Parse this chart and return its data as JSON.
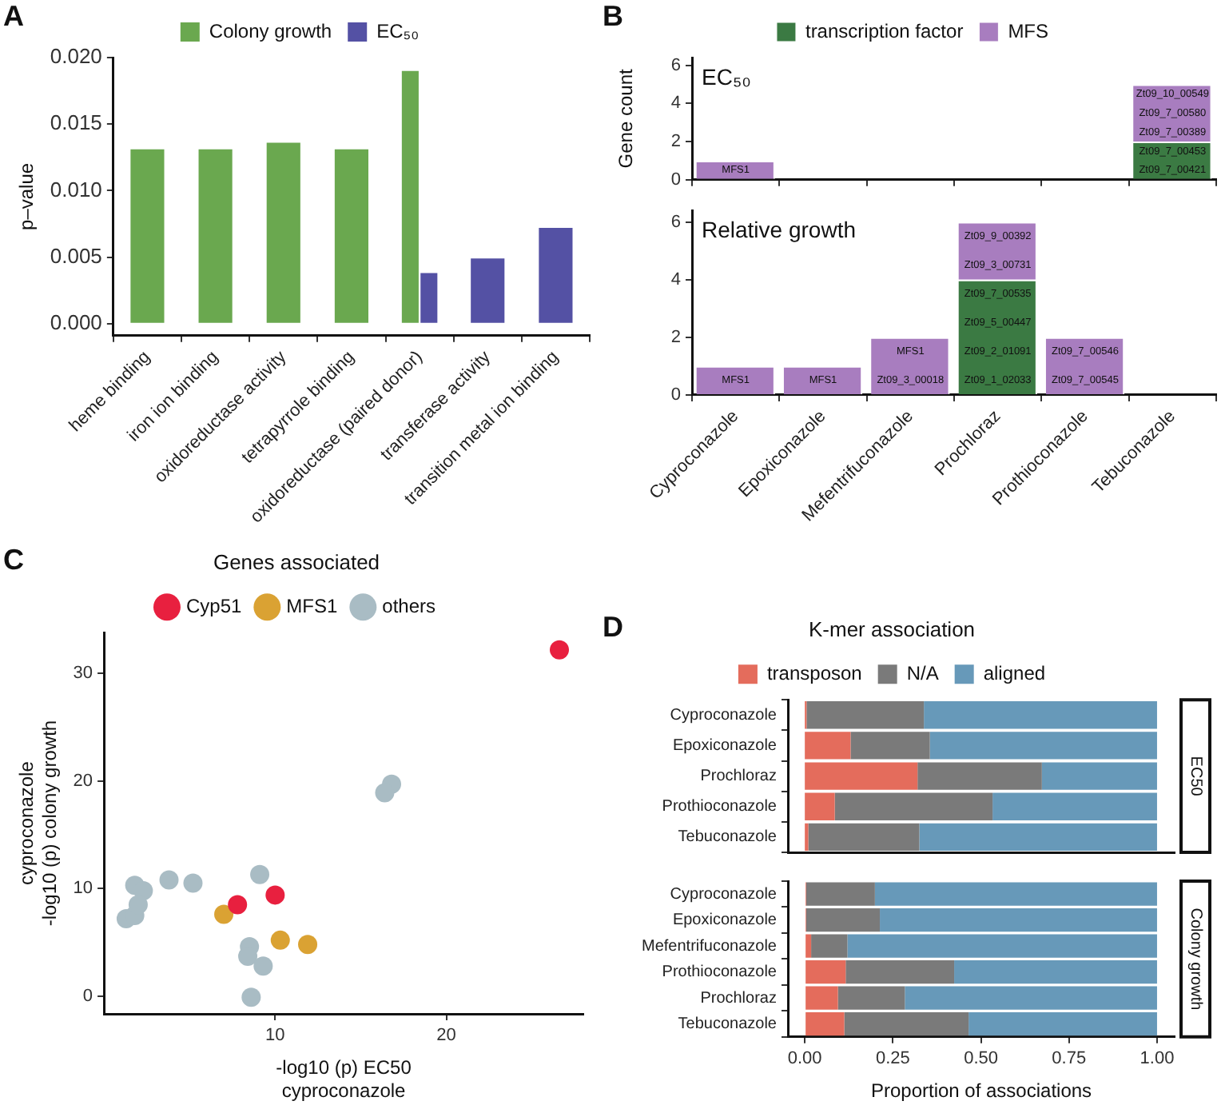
{
  "chart_data": [
    {
      "type": "bar",
      "ylabel": "p–value",
      "legend": "top",
      "annotations": [
        "A"
      ],
      "categories": [
        "heme binding",
        "iron ion binding",
        "oxidoreductase activity",
        "tetrapyrrole binding",
        "oxidoreductase (paired donor)",
        "transferase activity",
        "transition metal ion binding"
      ],
      "series": [
        {
          "name": "Colony growth",
          "color": "#6aa84f",
          "values": [
            0.0131,
            0.0131,
            0.0136,
            0.0131,
            0.019,
            null,
            null
          ]
        },
        {
          "name": "EC₅₀",
          "color": "#5451a4",
          "values": [
            null,
            null,
            null,
            null,
            0.0038,
            0.0049,
            0.0072
          ]
        }
      ],
      "ylim": [
        -0.0009,
        0.02
      ],
      "yticks": [
        {
          "value": 0,
          "label": "0.000"
        },
        {
          "value": 0.005,
          "label": "0.005"
        },
        {
          "value": 0.01,
          "label": "0.010"
        },
        {
          "value": 0.015,
          "label": "0.015"
        },
        {
          "value": 0.02,
          "label": "0.020"
        }
      ]
    },
    {
      "type": "bar",
      "stacked": true,
      "ylabel": "Gene count",
      "legend": "top",
      "tick_labels": "y",
      "categories": [
        "Cyproconazole",
        "Epoxiconazole",
        "Mefentrifuconazole",
        "Prochloraz",
        "Prothioconazole",
        "Tebuconazole"
      ],
      "series": [
        {
          "name": "transcription factor",
          "color": "#3b7a43",
          "values": [
            null,
            null,
            null,
            null,
            null,
            2
          ]
        },
        {
          "name": "MFS",
          "color": "#a87dbf",
          "values": [
            1,
            null,
            null,
            null,
            null,
            3
          ]
        }
      ],
      "ylim": [
        0,
        6.4
      ],
      "yticks": [
        0,
        2,
        4,
        6
      ],
      "annotations": [
        "B",
        "EC₅₀",
        {
          "text": "MFS1",
          "x": "Cyproconazole",
          "y": 0.5
        },
        {
          "text": "Zt09_7_00421",
          "x": "Tebuconazole",
          "y": 0.5
        },
        {
          "text": "Zt09_7_00453",
          "x": "Tebuconazole",
          "y": 1.5
        },
        {
          "text": "Zt09_7_00389",
          "x": "Tebuconazole",
          "y": 2.5
        },
        {
          "text": "Zt09_7_00580",
          "x": "Tebuconazole",
          "y": 3.5
        },
        {
          "text": "Zt09_10_00549",
          "x": "Tebuconazole",
          "y": 4.5
        }
      ]
    },
    {
      "type": "bar",
      "stacked": true,
      "categories": [
        "Cyproconazole",
        "Epoxiconazole",
        "Mefentrifuconazole",
        "Prochloraz",
        "Prothioconazole",
        "Tebuconazole"
      ],
      "series": [
        {
          "color": "#3b7a43",
          "values": [
            null,
            null,
            null,
            4,
            null,
            null
          ]
        },
        {
          "color": "#a87dbf",
          "values": [
            1,
            1,
            2,
            2,
            2,
            null
          ]
        }
      ],
      "ylim": [
        0,
        6.4
      ],
      "yticks": [
        0,
        2,
        4,
        6
      ],
      "annotations": [
        "Relative growth",
        {
          "text": "MFS1",
          "x": "Cyproconazole",
          "y": 0.5
        },
        {
          "text": "MFS1",
          "x": "Epoxiconazole",
          "y": 0.5
        },
        {
          "text": "Zt09_3_00018",
          "x": "Mefentrifuconazole",
          "y": 0.5
        },
        {
          "text": "MFS1",
          "x": "Mefentrifuconazole",
          "y": 1.5
        },
        {
          "text": "Zt09_1_02033",
          "x": "Prochloraz",
          "y": 0.5
        },
        {
          "text": "Zt09_2_01091",
          "x": "Prochloraz",
          "y": 1.5
        },
        {
          "text": "Zt09_5_00447",
          "x": "Prochloraz",
          "y": 2.5
        },
        {
          "text": "Zt09_7_00535",
          "x": "Prochloraz",
          "y": 3.5
        },
        {
          "text": "Zt09_3_00731",
          "x": "Prochloraz",
          "y": 4.5
        },
        {
          "text": "Zt09_9_00392",
          "x": "Prochloraz",
          "y": 5.5
        },
        {
          "text": "Zt09_7_00545",
          "x": "Prothioconazole",
          "y": 0.5
        },
        {
          "text": "Zt09_7_00546",
          "x": "Prothioconazole",
          "y": 1.5
        }
      ]
    },
    {
      "type": "scatter",
      "legend_title": "Genes associated",
      "legend": "top",
      "marker": "circle",
      "annotations": [
        "C"
      ],
      "xlabel": "-log10 (p) EC50\ncyproconazole",
      "ylabel": "cyproconazole\n-log10 (p) colony growth",
      "series": [
        {
          "name": "Cyp51",
          "color": "#e8203f",
          "x": [
            26.6,
            10.0,
            7.8
          ],
          "values": [
            32.2,
            9.4,
            8.5
          ]
        },
        {
          "name": "MFS1",
          "color": "#daa233",
          "x": [
            7.0,
            10.3,
            11.9
          ],
          "values": [
            7.6,
            5.2,
            4.8
          ]
        },
        {
          "name": "others",
          "color": "#a9bcc4",
          "x": [
            16.8,
            16.4,
            9.1,
            3.8,
            5.2,
            8.5,
            8.4,
            9.3,
            8.6,
            2.2,
            1.8,
            2.3,
            1.4,
            1.3,
            1.8,
            2.0
          ],
          "values": [
            19.7,
            18.9,
            11.3,
            10.8,
            10.5,
            4.6,
            3.7,
            2.8,
            -0.1,
            null,
            10.3,
            9.8,
            null,
            7.2,
            7.5,
            8.5
          ]
        }
      ],
      "xlim": [
        0,
        28
      ],
      "xticks": [
        10,
        20
      ],
      "ylim": [
        -1.65,
        33.8
      ],
      "yticks": [
        0,
        10,
        20,
        30
      ]
    },
    {
      "type": "bar",
      "orientation": "horizontal",
      "stacked": true,
      "legend_title": "K-mer association",
      "legend": "top",
      "tick_labels": "y",
      "annotations": [
        "D",
        "EC50"
      ],
      "categories": [
        "Cyproconazole",
        "Epoxiconazole",
        "Prochloraz",
        "Prothioconazole",
        "Tebuconazole"
      ],
      "series": [
        {
          "name": "transposon",
          "color": "#e46c5c",
          "values": [
            0.005,
            0.13,
            0.32,
            0.085,
            0.01
          ]
        },
        {
          "name": "N/A",
          "color": "#7a7a7a",
          "values": [
            0.333,
            0.225,
            0.353,
            0.448,
            0.315
          ]
        },
        {
          "name": "aligned",
          "color": "#6799b9",
          "values": [
            0.662,
            0.645,
            0.327,
            0.467,
            0.675
          ]
        }
      ],
      "xlim": [
        -0.048,
        1.05
      ]
    },
    {
      "type": "bar",
      "orientation": "horizontal",
      "stacked": true,
      "xlabel": "Proportion of associations",
      "annotations": [
        "Colony growth"
      ],
      "categories": [
        "Cyproconazole",
        "Epoxiconazole",
        "Mefentrifuconazole",
        "Prothioconazole",
        "Prochloraz",
        "Tebuconazole"
      ],
      "series": [
        {
          "color": "#e46c5c",
          "values": [
            0.004,
            0.004,
            0.018,
            0.116,
            0.094,
            0.112
          ]
        },
        {
          "color": "#7a7a7a",
          "values": [
            0.195,
            0.209,
            0.103,
            0.308,
            0.19,
            0.353
          ]
        },
        {
          "color": "#6799b9",
          "values": [
            0.801,
            0.787,
            0.879,
            0.576,
            0.716,
            0.535
          ]
        }
      ],
      "xlim": [
        -0.048,
        1.05
      ],
      "xticks": [
        {
          "value": 0,
          "label": "0.00"
        },
        {
          "value": 0.25,
          "label": "0.25"
        },
        {
          "value": 0.5,
          "label": "0.50"
        },
        {
          "value": 0.75,
          "label": "0.75"
        },
        {
          "value": 1,
          "label": "1.00"
        }
      ]
    }
  ]
}
